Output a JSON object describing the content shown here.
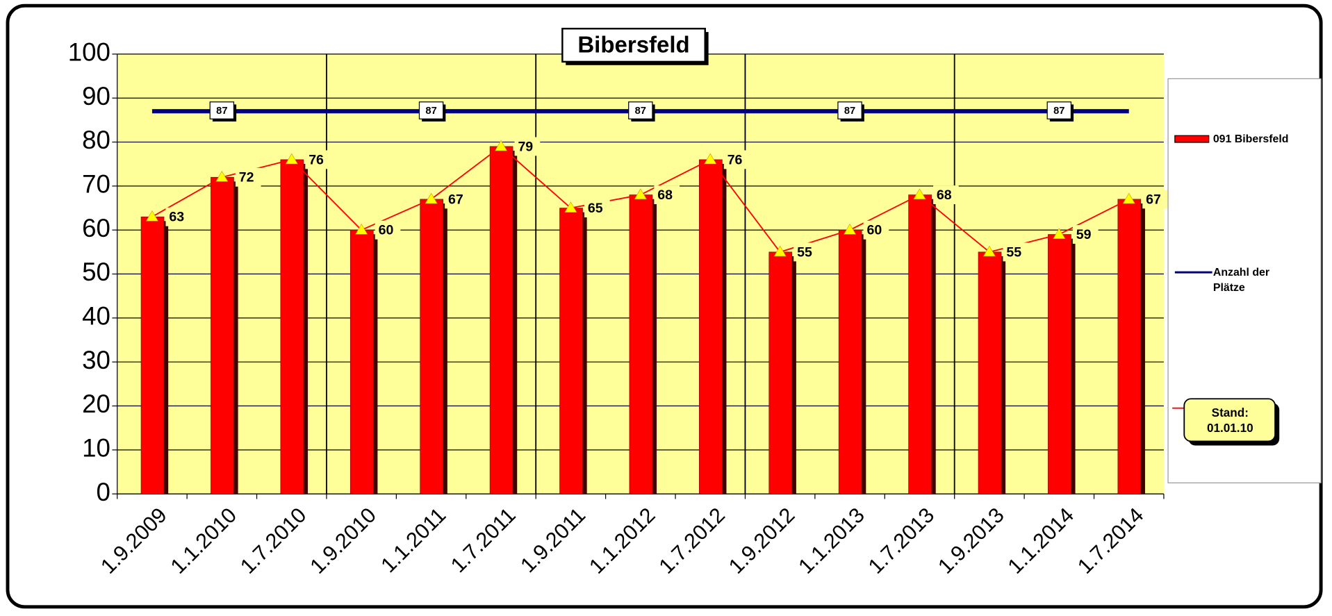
{
  "chart_data": {
    "type": "bar",
    "title": "Bibersfeld",
    "categories": [
      "1.9.2009",
      "1.1.2010",
      "1.7.2010",
      "1.9.2010",
      "1.1.2011",
      "1.7.2011",
      "1.9.2011",
      "1.1.2012",
      "1.7.2012",
      "1.9.2012",
      "1.1.2013",
      "1.7.2013",
      "1.9.2013",
      "1.1.2014",
      "1.7.2014"
    ],
    "series": [
      {
        "name": "091 Bibersfeld",
        "color": "#ff0000",
        "values": [
          63,
          72,
          76,
          60,
          67,
          79,
          65,
          68,
          76,
          55,
          60,
          68,
          55,
          59,
          67
        ]
      },
      {
        "name": "Anzahl der Plätze",
        "color": "#000080",
        "type": "line",
        "values": [
          87,
          87,
          87,
          87,
          87,
          87,
          87,
          87,
          87,
          87,
          87,
          87,
          87,
          87,
          87
        ]
      }
    ],
    "ylim": [
      0,
      100
    ],
    "yticks": [
      0,
      10,
      20,
      30,
      40,
      50,
      60,
      70,
      80,
      90,
      100
    ],
    "grid": true,
    "annotation": "Stand: 01.01.10"
  }
}
